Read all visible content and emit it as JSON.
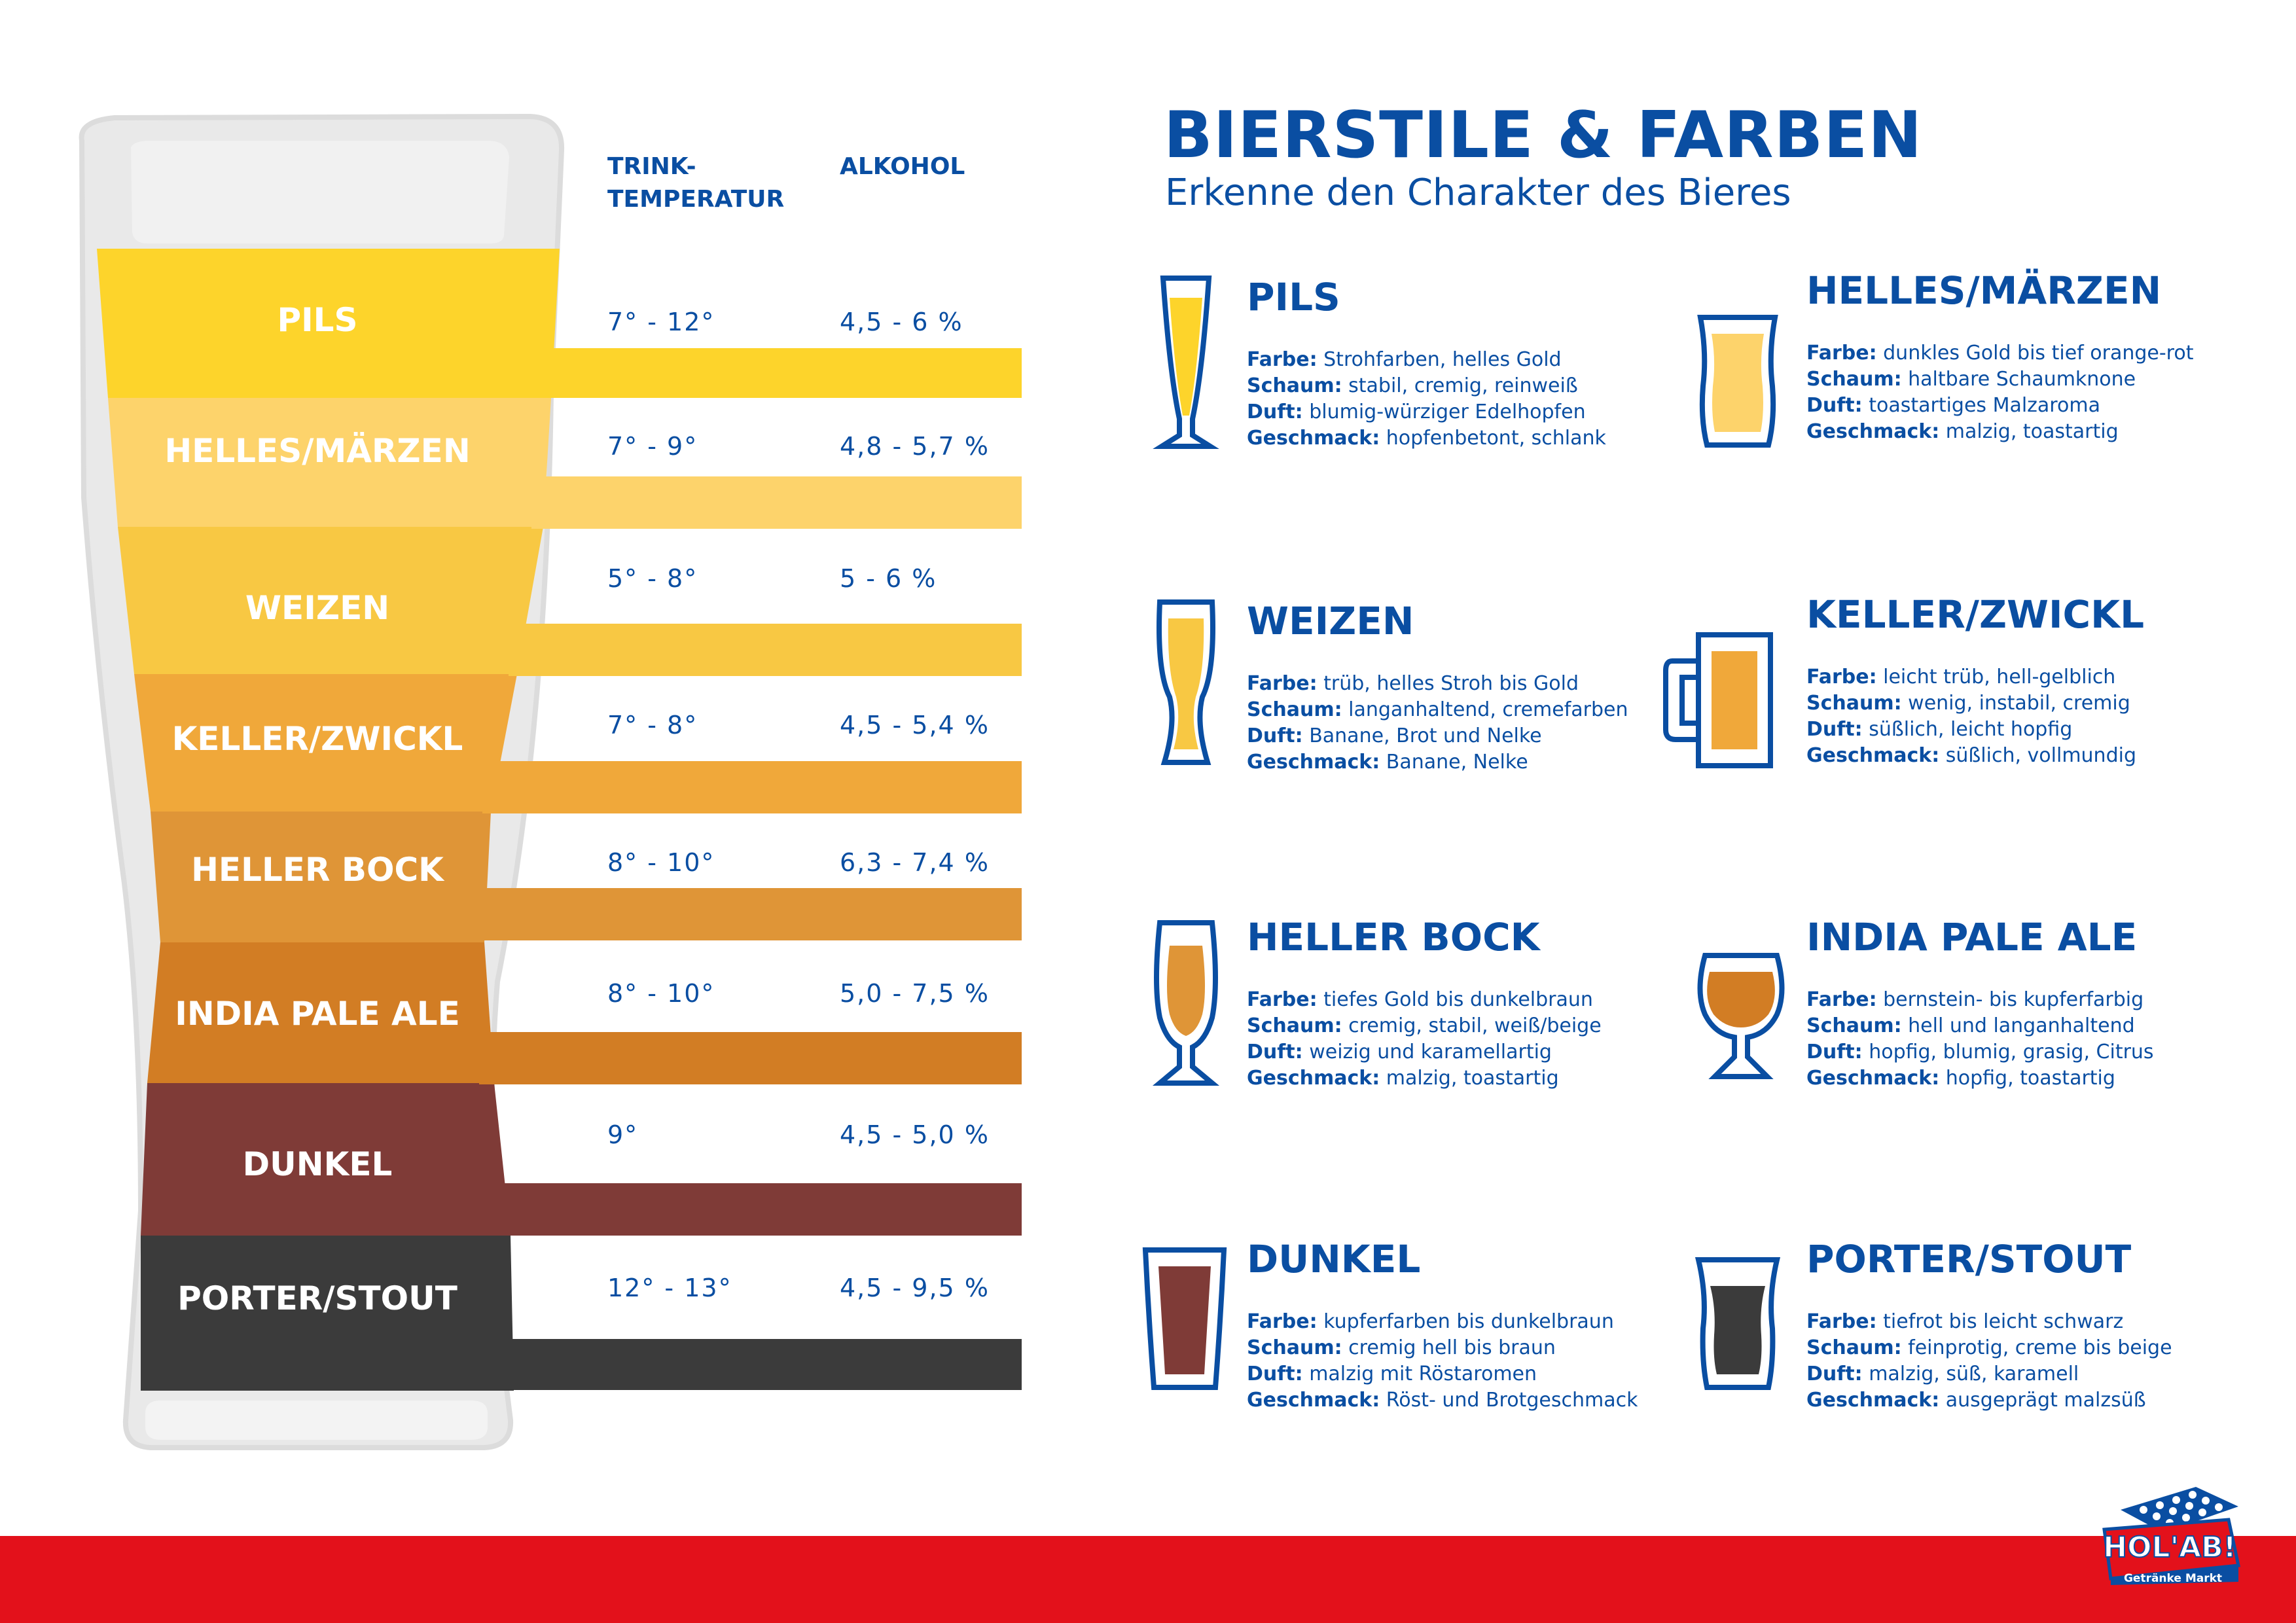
{
  "header": {
    "title": "BIERSTILE & FARBEN",
    "subtitle": "Erkenne den Charakter des Bieres"
  },
  "columns": {
    "temp_label": "TRINK-\nTEMPERATUR",
    "alcohol_label": "ALKOHOL"
  },
  "beers": [
    {
      "name": "PILS",
      "temp": "7° - 12°",
      "alcohol": "4,5 - 6 %",
      "color": "#fdd42b"
    },
    {
      "name": "HELLES/MÄRZEN",
      "temp": "7° - 9°",
      "alcohol": "4,8 - 5,7 %",
      "color": "#fdd36b"
    },
    {
      "name": "WEIZEN",
      "temp": "5° - 8°",
      "alcohol": "5 - 6 %",
      "color": "#f8c843"
    },
    {
      "name": "KELLER/ZWICKL",
      "temp": "7° - 8°",
      "alcohol": "4,5 - 5,4 %",
      "color": "#f0a83a"
    },
    {
      "name": "HELLER BOCK",
      "temp": "8° - 10°",
      "alcohol": "6,3 - 7,4 %",
      "color": "#df9537"
    },
    {
      "name": "INDIA PALE ALE",
      "temp": "8° - 10°",
      "alcohol": "5,0 - 7,5 %",
      "color": "#d27d24"
    },
    {
      "name": "DUNKEL",
      "temp": "9°",
      "alcohol": "4,5 - 5,0 %",
      "color": "#7f3b37"
    },
    {
      "name": "PORTER/STOUT",
      "temp": "12° - 13°",
      "alcohol": "4,5 - 9,5 %",
      "color": "#3b3b3b"
    }
  ],
  "labels": {
    "farbe": "Farbe:",
    "schaum": "Schaum:",
    "duft": "Duft:",
    "geschmack": "Geschmack:"
  },
  "cards": [
    {
      "title": "PILS",
      "farbe": "Strohfarben, helles Gold",
      "schaum": "stabil, cremig, reinweiß",
      "duft": "blumig-würziger Edelhopfen",
      "geschmack": "hopfenbetont, schlank",
      "icon": "pilsner-glass-icon"
    },
    {
      "title": "HELLES/MÄRZEN",
      "farbe": "dunkles Gold bis tief orange-rot",
      "schaum": "haltbare Schaumknone",
      "duft": "toastartiges Malzaroma",
      "geschmack": "malzig, toastartig",
      "icon": "beer-glass-icon"
    },
    {
      "title": "WEIZEN",
      "farbe": "trüb, helles Stroh bis Gold",
      "schaum": "langanhaltend, cremefarben",
      "duft": "Banane, Brot und Nelke",
      "geschmack": "Banane, Nelke",
      "icon": "weizen-glass-icon"
    },
    {
      "title": "KELLER/ZWICKL",
      "farbe": "leicht trüb, hell-gelblich",
      "schaum": "wenig, instabil, cremig",
      "duft": "süßlich, leicht hopfig",
      "geschmack": "süßlich, vollmundig",
      "icon": "beer-mug-icon"
    },
    {
      "title": "HELLER BOCK",
      "farbe": "tiefes Gold bis dunkelbraun",
      "schaum": "cremig, stabil, weiß/beige",
      "duft": "weizig und karamellartig",
      "geschmack": "malzig, toastartig",
      "icon": "tulip-glass-icon"
    },
    {
      "title": "INDIA PALE ALE",
      "farbe": "bernstein- bis kupferfarbig",
      "schaum": "hell und langanhaltend",
      "duft": "hopfig, blumig, grasig, Citrus",
      "geschmack": "hopfig, toastartig",
      "icon": "snifter-glass-icon"
    },
    {
      "title": "DUNKEL",
      "farbe": "kupferfarben bis dunkelbraun",
      "schaum": "cremig hell bis braun",
      "duft": "malzig mit Röstaromen",
      "geschmack": "Röst- und Brotgeschmack",
      "icon": "dunkel-glass-icon"
    },
    {
      "title": "PORTER/STOUT",
      "farbe": "tiefrot bis leicht schwarz",
      "schaum": "feinprotig, creme bis beige",
      "duft": "malzig, süß, karamell",
      "geschmack": "ausgeprägt malzsüß",
      "icon": "pint-glass-icon"
    }
  ],
  "logo": {
    "brand": "HOL'AB!",
    "tagline": "Getränke Markt",
    "icon": "crate-logo-icon"
  },
  "colors": {
    "accent": "#0a4ea2",
    "footer": "#e3111b"
  }
}
